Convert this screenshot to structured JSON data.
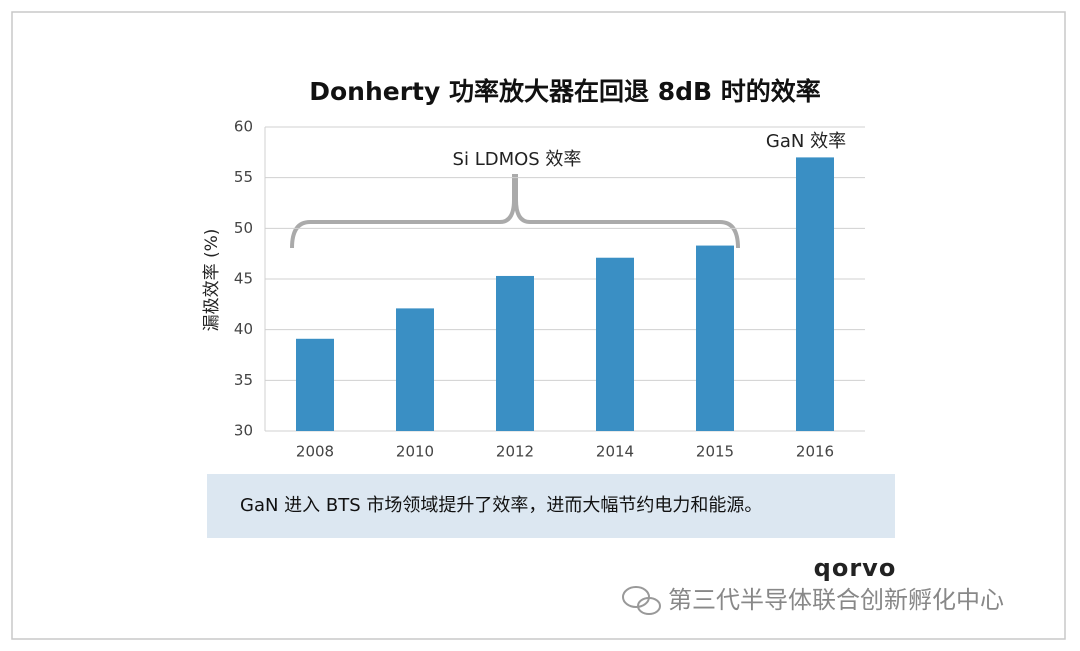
{
  "chart_data": {
    "type": "bar",
    "title": "Donherty 功率放大器在回退 8dB 时的效率",
    "y_label": "漏极效率 (%)",
    "categories": [
      "2008",
      "2010",
      "2012",
      "2014",
      "2015",
      "2016"
    ],
    "values": [
      39.1,
      42.1,
      45.3,
      47.1,
      48.3,
      57
    ],
    "color": "#3a8fc4",
    "ylim": [
      30,
      60
    ],
    "yticks": [
      30,
      35,
      40,
      45,
      50,
      55,
      60
    ],
    "grid": true,
    "annotations": [
      "Si LDMOS 效率",
      "GaN 效率"
    ],
    "caption": "GaN 进入 BTS 市场领域提升了效率，进而大幅节约电力和能源。"
  },
  "logo": "qorvo",
  "watermark": "第三代半导体联合创新孵化中心"
}
